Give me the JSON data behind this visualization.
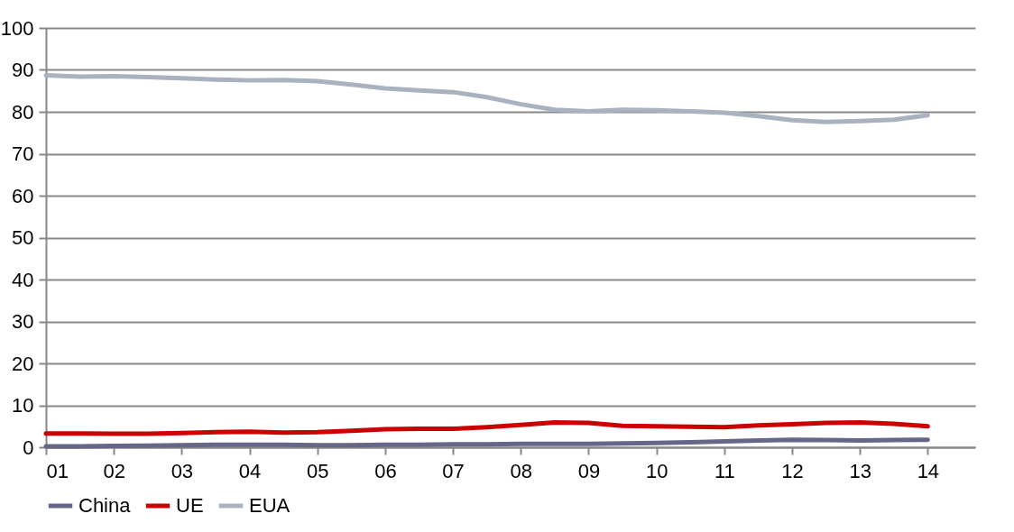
{
  "chart_data": {
    "type": "line",
    "x": [
      1,
      1.5,
      2,
      2.5,
      3,
      3.5,
      4,
      4.5,
      5,
      5.5,
      6,
      6.5,
      7,
      7.5,
      8,
      8.5,
      9,
      9.5,
      10,
      10.5,
      11,
      11.5,
      12,
      12.5,
      13,
      13.5,
      14
    ],
    "xlim": [
      1,
      14.7
    ],
    "xticks": [
      {
        "value": 1,
        "label": "01"
      },
      {
        "value": 2,
        "label": "02"
      },
      {
        "value": 3,
        "label": "03"
      },
      {
        "value": 4,
        "label": "04"
      },
      {
        "value": 5,
        "label": "05"
      },
      {
        "value": 6,
        "label": "06"
      },
      {
        "value": 7,
        "label": "07"
      },
      {
        "value": 8,
        "label": "08"
      },
      {
        "value": 9,
        "label": "09"
      },
      {
        "value": 10,
        "label": "10"
      },
      {
        "value": 11,
        "label": "11"
      },
      {
        "value": 12,
        "label": "12"
      },
      {
        "value": 13,
        "label": "13"
      },
      {
        "value": 14,
        "label": "14"
      }
    ],
    "ylim": [
      0,
      100
    ],
    "yticks": [
      0,
      10,
      20,
      30,
      40,
      50,
      60,
      70,
      80,
      90,
      100
    ],
    "grid": "y",
    "legend": "bottom",
    "marker": "none",
    "line_style": "solid",
    "series": [
      {
        "name": "China",
        "color": "#666688",
        "values": [
          0.2,
          0.2,
          0.3,
          0.4,
          0.5,
          0.6,
          0.6,
          0.6,
          0.5,
          0.5,
          0.6,
          0.6,
          0.7,
          0.7,
          0.8,
          0.8,
          0.8,
          0.9,
          1.0,
          1.2,
          1.4,
          1.6,
          1.8,
          1.7,
          1.6,
          1.7,
          1.8
        ]
      },
      {
        "name": "UE",
        "color": "#cc0000",
        "values": [
          3.3,
          3.3,
          3.2,
          3.2,
          3.4,
          3.6,
          3.7,
          3.5,
          3.6,
          3.9,
          4.3,
          4.4,
          4.4,
          4.8,
          5.3,
          5.9,
          5.8,
          5.1,
          5.0,
          4.9,
          4.8,
          5.2,
          5.5,
          5.8,
          5.9,
          5.6,
          5.0
        ]
      },
      {
        "name": "EUA",
        "color": "#a9b3bf",
        "values": [
          88.7,
          88.4,
          88.5,
          88.3,
          88.0,
          87.7,
          87.5,
          87.6,
          87.3,
          86.5,
          85.6,
          85.1,
          84.7,
          83.5,
          81.8,
          80.5,
          80.1,
          80.5,
          80.4,
          80.1,
          79.8,
          79.0,
          78.0,
          77.6,
          77.8,
          78.1,
          79.2
        ]
      }
    ]
  }
}
